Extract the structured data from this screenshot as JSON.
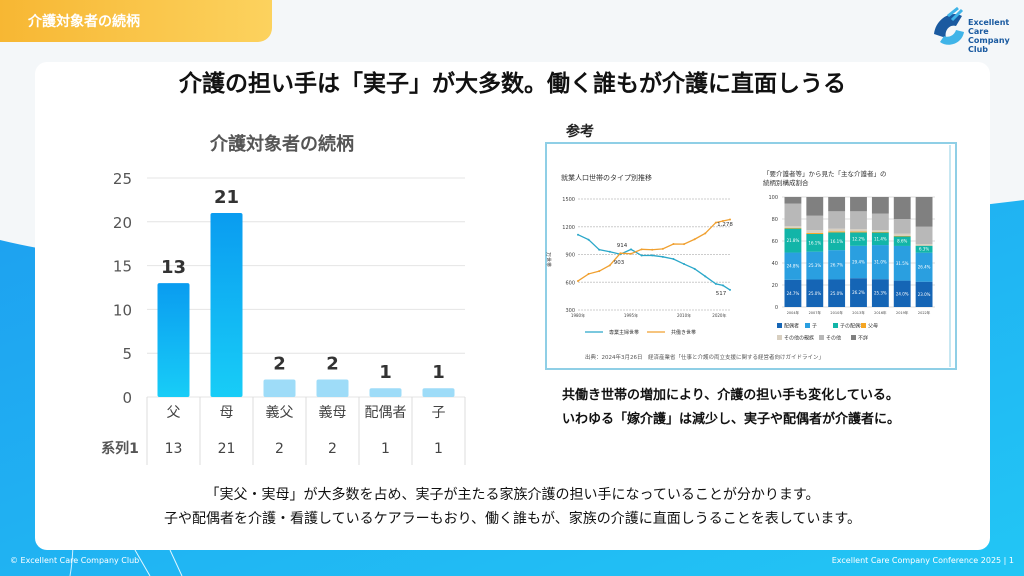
{
  "header": {
    "tab_title": "介護対象者の続柄",
    "logo_text": [
      "Excellent",
      "Care Company",
      "Club"
    ]
  },
  "headline": "介護の担い手は「実子」が大多数。働く誰もが介護に直面しうる",
  "reference": {
    "label": "参考",
    "line_chart": {
      "title": "就業人口世帯のタイプ別推移",
      "ylabel": "万世帯",
      "yticks": [
        300,
        600,
        900,
        1200,
        1500
      ],
      "xticks": [
        "1980年",
        "1995年",
        "2010年",
        "2020年"
      ],
      "x": [
        1980,
        1983,
        1986,
        1989,
        1992,
        1995,
        1998,
        2001,
        2004,
        2007,
        2010,
        2013,
        2016,
        2019,
        2021,
        2023
      ],
      "series": [
        {
          "name": "専業主婦世帯",
          "color": "#2aa7c9",
          "values": [
            1114,
            1060,
            952,
            930,
            903,
            955,
            889,
            890,
            875,
            851,
            797,
            745,
            664,
            582,
            566,
            517
          ]
        },
        {
          "name": "共働き世帯",
          "color": "#f0a030",
          "values": [
            614,
            690,
            720,
            783,
            914,
            908,
            956,
            951,
            961,
            1013,
            1012,
            1065,
            1129,
            1245,
            1262,
            1278
          ]
        }
      ],
      "annotations": [
        "1,278",
        "914",
        "903",
        "517"
      ]
    },
    "bar_chart": {
      "title": [
        "「要介護者等」から見た「主な介護者」の",
        "続柄別構成割合"
      ],
      "yticks": [
        0,
        20,
        40,
        60,
        80,
        100
      ],
      "categories": [
        "2004年",
        "2007年",
        "2010年",
        "2013年",
        "2016年",
        "2019年",
        "2022年"
      ],
      "series": [
        {
          "name": "配偶者",
          "color": "#1565b5",
          "values": [
            24.7,
            25.0,
            25.0,
            26.2,
            25.3,
            24.0,
            23.0
          ],
          "labels": [
            "24.7%",
            "25.0%",
            "25.0%",
            "26.2%",
            "25.3%",
            "24.0%",
            "23.0%"
          ]
        },
        {
          "name": "子",
          "color": "#2a9fe0",
          "values": [
            24.8,
            25.3,
            26.7,
            29.4,
            31.0,
            31.5,
            26.4
          ],
          "labels": [
            "24.8%",
            "25.3%",
            "26.7%",
            "29.4%",
            "31.0%",
            "31.5%",
            "26.4%"
          ]
        },
        {
          "name": "子の配偶者",
          "color": "#12b5a8",
          "values": [
            21.8,
            16.1,
            16.1,
            12.2,
            11.4,
            8.6,
            6.3
          ],
          "labels": [
            "21.8%",
            "16.1%",
            "16.1%",
            "12.2%",
            "11.4%",
            "8.6%",
            "6.3%"
          ]
        },
        {
          "name": "父母",
          "color": "#f5a623",
          "values": [
            0.6,
            0.9,
            0.9,
            0.8,
            0.6,
            0.6,
            0.1
          ]
        },
        {
          "name": "その他の親族",
          "color": "#d8cfc0",
          "values": [
            1.7,
            2.5,
            2.5,
            2.1,
            1.7,
            2.0,
            1.4
          ]
        },
        {
          "name": "その他",
          "color": "#b8b8b8",
          "values": [
            20.4,
            13.2,
            15.8,
            16.3,
            15.0,
            13.3,
            15.8
          ]
        },
        {
          "name": "不詳",
          "color": "#808080",
          "values": [
            6,
            17,
            13,
            13,
            15,
            20,
            27
          ]
        }
      ]
    },
    "source": "出典：2024年3月26日　経済産業省「仕事と介護の両立支援に関する経営者向けガイドライン」"
  },
  "captions": [
    "共働き世帯の増加により、介護の担い手も変化している。",
    "いわゆる「嫁介護」は減少し、実子や配偶者が介護者に。"
  ],
  "bottom_text": [
    "「実父・実母」が大多数を占め、実子が主たる家族介護の担い手になっていることが分かります。",
    "子や配偶者を介護・看護しているケアラーもおり、働く誰もが、家族の介護に直面しうることを表しています。"
  ],
  "footer": {
    "left": "© Excellent Care Company Club",
    "right": "Excellent Care Company Conference 2025 | 1"
  },
  "chart_data": {
    "type": "bar",
    "title": "介護対象者の続柄",
    "categories": [
      "父",
      "母",
      "義父",
      "義母",
      "配偶者",
      "子"
    ],
    "series": [
      {
        "name": "系列1",
        "values": [
          13,
          21,
          2,
          2,
          1,
          1
        ]
      }
    ],
    "ylim": [
      0,
      25
    ],
    "yticks": [
      0,
      5,
      10,
      15,
      20,
      25
    ],
    "table_label": "系列1",
    "colors": {
      "strong": "#10b0f2",
      "light": "#9edcf8"
    },
    "highlight": [
      true,
      true,
      false,
      false,
      false,
      false
    ],
    "grid": true
  }
}
